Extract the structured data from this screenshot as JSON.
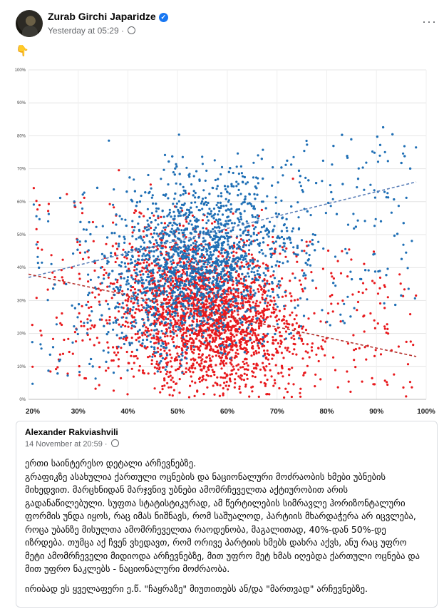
{
  "post": {
    "author": "Zurab Girchi Japaridze",
    "timestamp": "Yesterday at 05:29",
    "separator": "·",
    "emoji": "👇",
    "more_label": "···"
  },
  "comment": {
    "author": "Alexander Rakviashvili",
    "timestamp": "14 November at 20:59",
    "separator": "·",
    "body": "ერთი საინტერესო დეტალი არჩევნებზე.\nგრაფიკზე ასახულია ქართული ოცნების და ნაციონალური მოძრაობის ხმები უბნების მიხედვით. მარცხნიდან მარჯვნივ უბნები ამომრჩეველთა აქტიურობით არის გადანაწილებული. სუფთა სტატისტიკურად, ამ წერტილების სიმრავლე ჰორიზონტალური ფორმის უნდა იყოს, რაც იმას ნიშნავს, რომ საშუალოდ, პარტიის მხარდაჭერა არ იცვლება, როცა უბანზე მისულთა ამომრჩეველთა რაოდენობა, მაგალითად, 40%-დან 50%-დე იზრდება. თუმცა აქ ჩვენ ვხედავთ, რომ ორივე პარტიის ხმებს დახრა აქვს, ანუ რაც უფრო მეტი ამომრჩეველი მიდიოდა არჩევნებზე, მით უფრო მეტ ხმას იღებდა ქართული ოცნება და მით უფრო ნაკლებს - ნაციონალური მოძრაობა.",
    "footer": "ირიბად ეს ყველაფერი ე.წ. \"ჩაყრაზე\" მიუთითებს ან/და \"მართვად\" არჩევნებზე."
  },
  "colors": {
    "accent": "#1877f2",
    "blue_series": "#1f6fb5",
    "red_series": "#e8191d"
  },
  "chart_data": {
    "type": "scatter",
    "title": "",
    "xlabel": "",
    "ylabel": "",
    "x_ticks": [
      "20%",
      "30%",
      "40%",
      "50%",
      "60%",
      "70%",
      "80%",
      "90%",
      "100%"
    ],
    "y_ticks": [
      "0%",
      "10%",
      "20%",
      "30%",
      "40%",
      "50%",
      "60%",
      "70%",
      "80%",
      "90%",
      "100%"
    ],
    "xlim": [
      20,
      100
    ],
    "ylim": [
      0,
      100
    ],
    "grid": true,
    "legend": "none",
    "series": [
      {
        "color": "#1f6fb5",
        "cluster_center": [
          54,
          42
        ],
        "trendline": {
          "style": "dashed",
          "from": [
            20,
            37
          ],
          "to": [
            98,
            66
          ]
        }
      },
      {
        "color": "#e8191d",
        "cluster_center": [
          56,
          25
        ],
        "trendline": {
          "style": "dashed",
          "from": [
            20,
            38
          ],
          "to": [
            98,
            13
          ]
        }
      }
    ]
  }
}
